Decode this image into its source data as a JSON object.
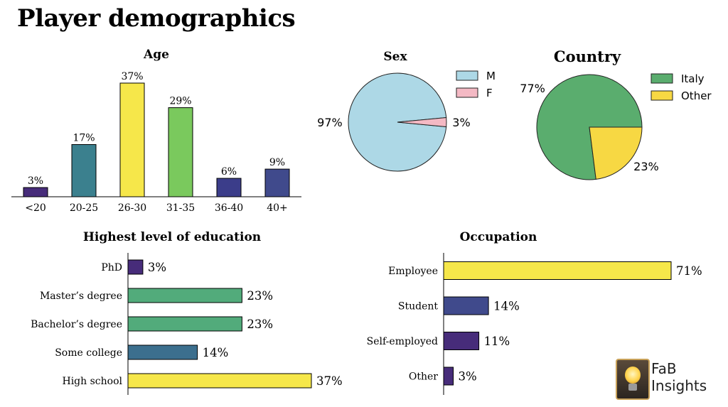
{
  "page": {
    "title": "Player demographics"
  },
  "logo": {
    "line1": "FaB",
    "line2": "Insights"
  },
  "colors": {
    "purple": "#472c7a",
    "teal": "#3b808e",
    "yellow": "#f6e74a",
    "green": "#7ac95d",
    "indigo": "#3b3d8a",
    "navy": "#404a8c",
    "seafoam": "#52ab7b",
    "steel": "#3c6f8e",
    "light_blue": "#add8e6",
    "pink": "#f4b9c4",
    "pie_green": "#5aad6e",
    "pie_yellow": "#f7d843"
  },
  "chart_data": [
    {
      "id": "age",
      "type": "bar",
      "title": "Age",
      "categories": [
        "<20",
        "20-25",
        "26-30",
        "31-35",
        "36-40",
        "40+"
      ],
      "values": [
        3,
        17,
        37,
        29,
        6,
        9
      ],
      "labels": [
        "3%",
        "17%",
        "37%",
        "29%",
        "6%",
        "9%"
      ],
      "colors": [
        "#472c7a",
        "#3b808e",
        "#f6e74a",
        "#7ac95d",
        "#3b3d8a",
        "#404a8c"
      ],
      "ylim": [
        0,
        40
      ]
    },
    {
      "id": "sex",
      "type": "pie",
      "title": "Sex",
      "categories": [
        "M",
        "F"
      ],
      "values": [
        97,
        3
      ],
      "labels": [
        "97%",
        "3%"
      ],
      "colors": [
        "#add8e6",
        "#f4b9c4"
      ],
      "legend": [
        "M",
        "F"
      ],
      "legend_position": "right"
    },
    {
      "id": "country",
      "type": "pie",
      "title": "Country",
      "categories": [
        "Italy",
        "Other"
      ],
      "values": [
        77,
        23
      ],
      "labels": [
        "77%",
        "23%"
      ],
      "colors": [
        "#5aad6e",
        "#f7d843"
      ],
      "legend": [
        "Italy",
        "Other"
      ],
      "legend_position": "right"
    },
    {
      "id": "education",
      "type": "bar",
      "orientation": "horizontal",
      "title": "Highest level of education",
      "categories": [
        "PhD",
        "Master’s degree",
        "Bachelor’s degree",
        "Some college",
        "High school"
      ],
      "values": [
        3,
        23,
        23,
        14,
        37
      ],
      "labels": [
        "3%",
        "23%",
        "23%",
        "14%",
        "37%"
      ],
      "colors": [
        "#472c7a",
        "#52ab7b",
        "#52ab7b",
        "#3c6f8e",
        "#f6e74a"
      ],
      "xlim": [
        0,
        37
      ]
    },
    {
      "id": "occupation",
      "type": "bar",
      "orientation": "horizontal",
      "title": "Occupation",
      "categories": [
        "Employee",
        "Student",
        "Self-employed",
        "Other"
      ],
      "values": [
        71,
        14,
        11,
        3
      ],
      "labels": [
        "71%",
        "14%",
        "11%",
        "3%"
      ],
      "colors": [
        "#f6e74a",
        "#404a8c",
        "#472c7a",
        "#472c7a"
      ],
      "xlim": [
        0,
        71
      ]
    }
  ]
}
